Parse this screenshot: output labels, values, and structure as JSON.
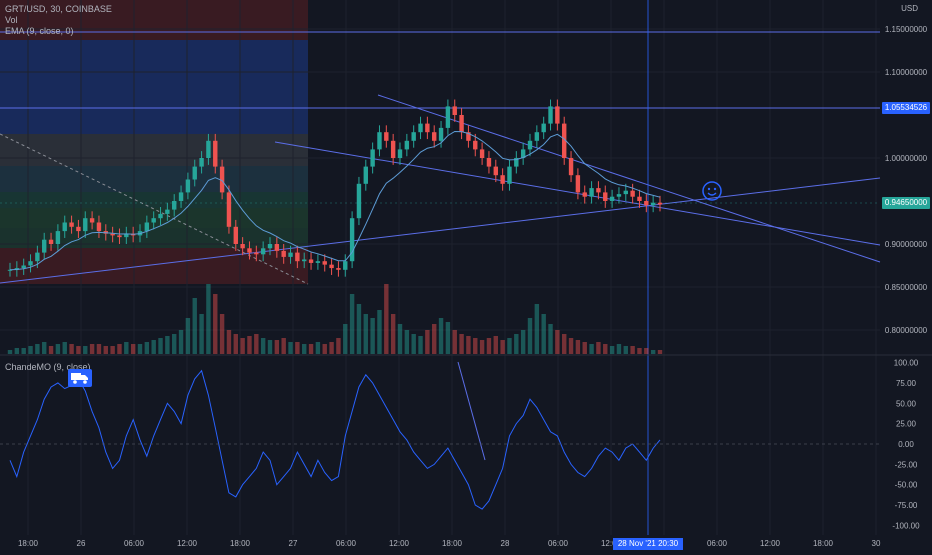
{
  "header": {
    "symbol_line": "GRT/USD, 30, COINBASE",
    "vol_label": "Vol",
    "ema_label": "EMA (9, close, 0)",
    "currency": "USD"
  },
  "oscillator": {
    "label": "ChandeMO (9, close)"
  },
  "colors": {
    "background": "#131722",
    "up": "#26a69a",
    "down": "#ef5350",
    "line": "#2962ff",
    "ema": "#5d9cd6"
  },
  "markers": {
    "resistance_price": "1.05534526",
    "last_price": "0.94650000",
    "cursor_date": "28 Nov '21",
    "cursor_time": "20:30"
  },
  "icons": {
    "smiley": "smiley-icon",
    "truck": "truck-icon"
  },
  "chart_data": [
    {
      "type": "candlestick",
      "title": "GRT/USD, 30, COINBASE",
      "ylim": [
        0.77,
        1.17
      ],
      "y_ticks": [
        {
          "v": 1.15,
          "label": "1.15000000"
        },
        {
          "v": 1.1,
          "label": "1.10000000"
        },
        {
          "v": 1.0,
          "label": "1.00000000"
        },
        {
          "v": 0.9,
          "label": "0.90000000"
        },
        {
          "v": 0.85,
          "label": "0.85000000"
        },
        {
          "v": 0.8,
          "label": "0.80000000"
        }
      ],
      "x_ticks": [
        "18:00",
        "26",
        "06:00",
        "12:00",
        "18:00",
        "27",
        "06:00",
        "12:00",
        "18:00",
        "28",
        "06:00",
        "12:00",
        "18:00",
        "06:00",
        "12:00",
        "18:00",
        "30"
      ],
      "series": [
        {
          "name": "Close",
          "values": [
            0.87,
            0.872,
            0.875,
            0.88,
            0.89,
            0.905,
            0.9,
            0.915,
            0.925,
            0.92,
            0.915,
            0.93,
            0.925,
            0.915,
            0.912,
            0.91,
            0.908,
            0.912,
            0.91,
            0.915,
            0.925,
            0.93,
            0.935,
            0.94,
            0.95,
            0.96,
            0.975,
            0.99,
            1.0,
            1.02,
            0.99,
            0.96,
            0.92,
            0.9,
            0.895,
            0.89,
            0.888,
            0.895,
            0.9,
            0.892,
            0.885,
            0.89,
            0.88,
            0.882,
            0.878,
            0.88,
            0.876,
            0.872,
            0.87,
            0.88,
            0.93,
            0.97,
            0.99,
            1.01,
            1.03,
            1.02,
            1.0,
            1.01,
            1.02,
            1.03,
            1.04,
            1.03,
            1.02,
            1.035,
            1.06,
            1.05,
            1.03,
            1.02,
            1.01,
            1.0,
            0.99,
            0.98,
            0.97,
            0.99,
            1.0,
            1.01,
            1.02,
            1.03,
            1.04,
            1.06,
            1.04,
            1.0,
            0.98,
            0.96,
            0.955,
            0.965,
            0.96,
            0.95,
            0.955,
            0.958,
            0.962,
            0.955,
            0.95,
            0.945,
            0.948,
            0.946
          ]
        },
        {
          "name": "Vol",
          "values": [
            2,
            3,
            3,
            4,
            5,
            6,
            4,
            5,
            6,
            5,
            4,
            4,
            5,
            5,
            4,
            4,
            5,
            6,
            5,
            5,
            6,
            7,
            8,
            9,
            10,
            12,
            18,
            28,
            20,
            35,
            30,
            20,
            12,
            10,
            8,
            9,
            10,
            8,
            7,
            7,
            8,
            6,
            6,
            5,
            5,
            6,
            5,
            6,
            8,
            15,
            30,
            25,
            20,
            18,
            22,
            35,
            20,
            15,
            12,
            10,
            9,
            12,
            15,
            18,
            16,
            12,
            10,
            9,
            8,
            7,
            8,
            9,
            7,
            8,
            10,
            12,
            18,
            25,
            20,
            15,
            12,
            10,
            8,
            7,
            6,
            5,
            6,
            5,
            4,
            5,
            4,
            4,
            3,
            3,
            2,
            2
          ]
        }
      ]
    },
    {
      "type": "line",
      "title": "ChandeMO (9, close)",
      "ylim": [
        -105,
        105
      ],
      "y_ticks": [
        {
          "v": 100,
          "label": "100.00"
        },
        {
          "v": 75,
          "label": "75.00"
        },
        {
          "v": 50,
          "label": "50.00"
        },
        {
          "v": 25,
          "label": "25.00"
        },
        {
          "v": 0,
          "label": "0.00"
        },
        {
          "v": -25,
          "label": "-25.00"
        },
        {
          "v": -50,
          "label": "-50.00"
        },
        {
          "v": -75,
          "label": "-75.00"
        },
        {
          "v": -100,
          "label": "-100.00"
        }
      ],
      "series": [
        {
          "name": "ChandeMO",
          "values": [
            -20,
            -40,
            -10,
            10,
            30,
            55,
            70,
            75,
            68,
            72,
            80,
            65,
            40,
            20,
            -10,
            -30,
            -20,
            10,
            30,
            5,
            -15,
            10,
            30,
            50,
            40,
            25,
            60,
            80,
            90,
            60,
            20,
            -20,
            -60,
            -65,
            -50,
            -40,
            -30,
            -10,
            -20,
            -50,
            -40,
            -30,
            -10,
            -25,
            -40,
            -20,
            -35,
            -45,
            -40,
            10,
            40,
            70,
            85,
            75,
            60,
            45,
            30,
            15,
            5,
            -10,
            -20,
            -30,
            -25,
            -15,
            -5,
            -20,
            -35,
            -50,
            -75,
            -80,
            -70,
            -50,
            -30,
            10,
            25,
            35,
            55,
            45,
            30,
            15,
            10,
            -10,
            -25,
            -35,
            -40,
            -30,
            -15,
            -5,
            -10,
            -20,
            -5,
            0,
            -10,
            -20,
            -5,
            5
          ]
        }
      ]
    }
  ]
}
